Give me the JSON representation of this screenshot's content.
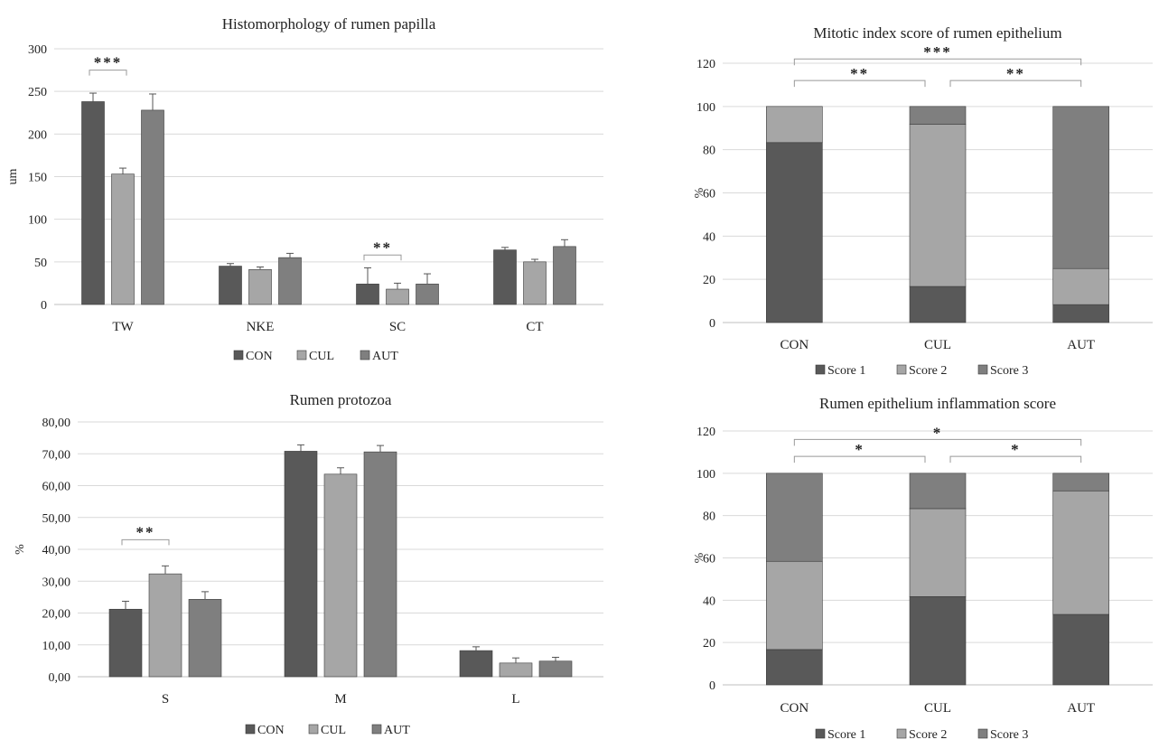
{
  "colors": {
    "c1": "#595959",
    "c2": "#a6a6a6",
    "c3": "#7f7f7f",
    "grid": "#d9d9d9",
    "axis": "#bfbfbf",
    "bracket": "#999999"
  },
  "chart_data": [
    {
      "type": "bar",
      "title": "Histomorphology of rumen papilla",
      "ylabel": "um",
      "xlabel": "",
      "ylim": [
        0,
        300
      ],
      "yticks": [
        "0",
        "50",
        "100",
        "150",
        "200",
        "250",
        "300"
      ],
      "ytick_values": [
        0,
        50,
        100,
        150,
        200,
        250,
        300
      ],
      "grid": true,
      "legend_position": "bottom",
      "categories": [
        "TW",
        "NKE",
        "SC",
        "CT"
      ],
      "series": [
        {
          "name": "CON",
          "values": [
            238,
            45,
            24,
            64
          ],
          "errors": [
            10,
            3,
            19,
            3
          ]
        },
        {
          "name": "CUL",
          "values": [
            153,
            41,
            18,
            50
          ],
          "errors": [
            7,
            3,
            7,
            3
          ]
        },
        {
          "name": "AUT",
          "values": [
            228,
            55,
            24,
            68
          ],
          "errors": [
            19,
            5,
            12,
            8
          ]
        }
      ],
      "annotations": [
        {
          "text": "***",
          "category": 0,
          "from_series": 0,
          "to_series": 1,
          "level": 275
        },
        {
          "text": "**",
          "category": 2,
          "from_series": 0,
          "to_series": 1,
          "level": 58
        }
      ]
    },
    {
      "type": "bar",
      "title": "Rumen protozoa",
      "ylabel": "%",
      "xlabel": "",
      "ylim": [
        0,
        80
      ],
      "yticks": [
        "0,00",
        "10,00",
        "20,00",
        "30,00",
        "40,00",
        "50,00",
        "60,00",
        "70,00",
        "80,00"
      ],
      "ytick_values": [
        0,
        10,
        20,
        30,
        40,
        50,
        60,
        70,
        80
      ],
      "grid": true,
      "legend_position": "bottom",
      "categories": [
        "S",
        "M",
        "L"
      ],
      "series": [
        {
          "name": "CON",
          "values": [
            21.2,
            70.8,
            8.2
          ],
          "errors": [
            2.5,
            2.0,
            1.2
          ]
        },
        {
          "name": "CUL",
          "values": [
            32.3,
            63.6,
            4.3
          ],
          "errors": [
            2.5,
            2.0,
            1.6
          ]
        },
        {
          "name": "AUT",
          "values": [
            24.3,
            70.6,
            4.9
          ],
          "errors": [
            2.4,
            2.0,
            1.2
          ]
        }
      ],
      "annotations": [
        {
          "text": "**",
          "category": 0,
          "from_series": 0,
          "to_series": 1,
          "level": 43
        }
      ]
    },
    {
      "type": "bar",
      "stacked": true,
      "title": "Mitotic index score of rumen epithelium",
      "ylabel": "%",
      "xlabel": "",
      "ylim": [
        0,
        120
      ],
      "yticks": [
        "0",
        "20",
        "40",
        "60",
        "80",
        "100",
        "120"
      ],
      "ytick_values": [
        0,
        20,
        40,
        60,
        80,
        100,
        120
      ],
      "grid": true,
      "legend_position": "bottom",
      "categories": [
        "CON",
        "CUL",
        "AUT"
      ],
      "series": [
        {
          "name": "Score 1",
          "values": [
            83.3,
            16.7,
            8.3
          ]
        },
        {
          "name": "Score 2",
          "values": [
            16.7,
            75.0,
            16.7
          ]
        },
        {
          "name": "Score 3",
          "values": [
            0.0,
            8.3,
            75.0
          ]
        }
      ],
      "annotations": [
        {
          "text": "**",
          "from_category": 0,
          "to_category": 1,
          "level": 112
        },
        {
          "text": "**",
          "from_category": 1,
          "to_category": 2,
          "level": 112
        },
        {
          "text": "***",
          "from_category": 0,
          "to_category": 2,
          "level": 122
        }
      ]
    },
    {
      "type": "bar",
      "stacked": true,
      "title": "Rumen epithelium inflammation score",
      "ylabel": "%",
      "xlabel": "",
      "ylim": [
        0,
        120
      ],
      "yticks": [
        "0",
        "20",
        "40",
        "60",
        "80",
        "100",
        "120"
      ],
      "ytick_values": [
        0,
        20,
        40,
        60,
        80,
        100,
        120
      ],
      "grid": true,
      "legend_position": "bottom",
      "categories": [
        "CON",
        "CUL",
        "AUT"
      ],
      "series": [
        {
          "name": "Score 1",
          "values": [
            16.7,
            41.7,
            33.3
          ]
        },
        {
          "name": "Score 2",
          "values": [
            41.7,
            41.6,
            58.4
          ]
        },
        {
          "name": "Score 3",
          "values": [
            41.6,
            16.7,
            8.3
          ]
        }
      ],
      "annotations": [
        {
          "text": "*",
          "from_category": 0,
          "to_category": 1,
          "level": 108
        },
        {
          "text": "*",
          "from_category": 1,
          "to_category": 2,
          "level": 108
        },
        {
          "text": "*",
          "from_category": 0,
          "to_category": 2,
          "level": 116
        }
      ]
    }
  ]
}
